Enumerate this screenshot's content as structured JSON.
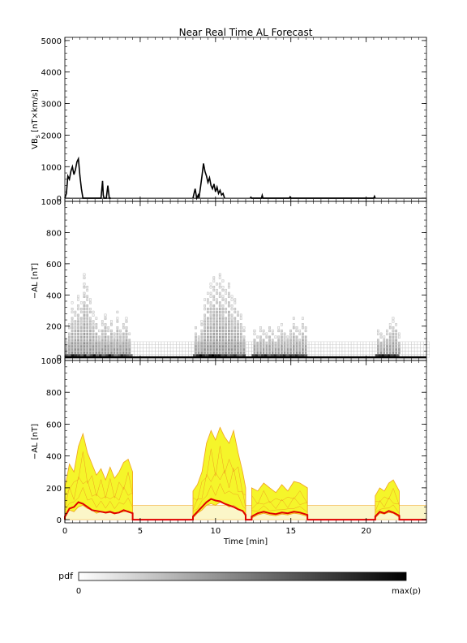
{
  "title": "Near Real Time AL Forecast",
  "colors": {
    "axis": "#000000",
    "band_fill": "#f5f52a",
    "band_edge": "#f0a020",
    "median": "#e00000",
    "pale_band": "#fbf6c8",
    "bar_fill": "#ffffff"
  },
  "chart_data": [
    {
      "type": "line",
      "name": "vbs-panel",
      "ylabel": "VBs [nT×km/s]",
      "ylabel_main": "VB",
      "ylabel_sub": "s",
      "ylabel_rest": " [nT×km/s]",
      "xlim": [
        0,
        24
      ],
      "ylim": [
        -100,
        5100
      ],
      "yticks": [
        0,
        1000,
        2000,
        3000,
        4000,
        5000
      ],
      "yminor": 200,
      "xticks": [
        0,
        5,
        10,
        15,
        20
      ],
      "xminor": 0.5,
      "series": [
        {
          "x": [
            0,
            0.1,
            0.2,
            0.3,
            0.4,
            0.5,
            0.6,
            0.7,
            0.8,
            0.9,
            1.0,
            1.1,
            1.2,
            1.3,
            1.4,
            2.4,
            2.5,
            2.55,
            2.6,
            2.75,
            2.85,
            2.9,
            2.95,
            3.05
          ],
          "y": [
            0,
            150,
            700,
            600,
            850,
            1000,
            750,
            900,
            1150,
            1250,
            700,
            300,
            0,
            0,
            0,
            0,
            550,
            100,
            0,
            0,
            400,
            200,
            0,
            0
          ]
        },
        {
          "x": [
            8.5,
            8.65,
            8.75,
            8.85,
            8.9,
            9.0,
            9.1,
            9.2,
            9.3,
            9.4,
            9.5,
            9.6,
            9.7,
            9.8,
            9.9,
            10.0,
            10.1,
            10.2,
            10.3,
            10.4,
            10.5,
            10.6
          ],
          "y": [
            0,
            300,
            0,
            100,
            0,
            350,
            700,
            1100,
            850,
            700,
            500,
            650,
            400,
            300,
            450,
            200,
            350,
            150,
            250,
            100,
            150,
            0
          ]
        },
        {
          "x": [
            12.3,
            12.35,
            12.4,
            13.05,
            13.1,
            13.15,
            14.9,
            14.95,
            15.0,
            20.5,
            20.55,
            20.6
          ],
          "y": [
            0,
            30,
            0,
            0,
            90,
            0,
            0,
            40,
            0,
            0,
            60,
            0
          ]
        }
      ],
      "baseline": [
        0,
        24
      ]
    },
    {
      "type": "heatmap",
      "name": "pdf-panel",
      "ylabel": "−AL [nT]",
      "xlim": [
        0,
        24
      ],
      "ylim": [
        -20,
        1000
      ],
      "yticks": [
        0,
        200,
        400,
        600,
        800,
        1000
      ],
      "yminor": 40,
      "xticks": [
        0,
        5,
        10,
        15,
        20
      ],
      "xminor": 0.5,
      "bin_height": 20,
      "background_band": [
        0,
        100
      ],
      "active_segments": [
        {
          "start": 0,
          "end": 4.5,
          "dark": [
            0.7,
            0.6,
            0.9,
            0.8,
            0.75,
            0.6,
            0.85,
            0.5,
            0.7,
            0.9,
            0.6,
            0.8,
            0.55,
            0.7,
            0.9,
            0.7,
            0.5,
            0.6,
            0.8,
            0.7,
            0.6,
            0.55
          ]
        },
        {
          "start": 8.5,
          "end": 12.0,
          "dark": [
            0.6,
            0.8,
            0.95,
            0.8,
            0.7,
            0.9,
            1.0,
            0.85,
            0.9,
            0.7,
            0.8,
            0.6,
            0.7,
            0.8,
            0.6,
            0.55,
            0.7
          ]
        },
        {
          "start": 12.4,
          "end": 16.1,
          "dark": [
            0.7,
            0.8,
            0.6,
            0.75,
            0.85,
            0.6,
            0.7,
            0.8,
            0.65,
            0.7,
            0.8,
            0.6,
            0.75,
            0.7,
            0.8,
            0.65,
            0.7,
            0.6
          ]
        },
        {
          "start": 20.6,
          "end": 22.2,
          "dark": [
            0.7,
            0.8,
            0.9,
            0.75,
            0.85,
            0.7,
            0.8,
            0.6
          ]
        }
      ],
      "columns": [
        [
          0.0,
          120
        ],
        [
          0.2,
          230
        ],
        [
          0.4,
          350
        ],
        [
          0.6,
          300
        ],
        [
          0.8,
          420
        ],
        [
          1.0,
          350
        ],
        [
          1.2,
          560
        ],
        [
          1.4,
          480
        ],
        [
          1.6,
          380
        ],
        [
          1.8,
          300
        ],
        [
          2.0,
          260
        ],
        [
          2.2,
          180
        ],
        [
          2.4,
          240
        ],
        [
          2.6,
          300
        ],
        [
          2.8,
          200
        ],
        [
          3.0,
          260
        ],
        [
          3.2,
          180
        ],
        [
          3.4,
          300
        ],
        [
          3.6,
          200
        ],
        [
          3.8,
          230
        ],
        [
          4.0,
          260
        ],
        [
          4.2,
          160
        ],
        [
          8.6,
          200
        ],
        [
          8.8,
          150
        ],
        [
          9.0,
          260
        ],
        [
          9.2,
          380
        ],
        [
          9.4,
          420
        ],
        [
          9.6,
          500
        ],
        [
          9.8,
          540
        ],
        [
          10.0,
          470
        ],
        [
          10.2,
          560
        ],
        [
          10.4,
          500
        ],
        [
          10.6,
          430
        ],
        [
          10.8,
          480
        ],
        [
          11.0,
          400
        ],
        [
          11.2,
          380
        ],
        [
          11.4,
          320
        ],
        [
          11.6,
          280
        ],
        [
          11.8,
          200
        ],
        [
          12.5,
          180
        ],
        [
          12.7,
          140
        ],
        [
          12.9,
          200
        ],
        [
          13.1,
          170
        ],
        [
          13.3,
          150
        ],
        [
          13.5,
          220
        ],
        [
          13.7,
          180
        ],
        [
          13.9,
          140
        ],
        [
          14.1,
          200
        ],
        [
          14.3,
          220
        ],
        [
          14.5,
          170
        ],
        [
          14.7,
          150
        ],
        [
          14.9,
          200
        ],
        [
          15.1,
          250
        ],
        [
          15.3,
          220
        ],
        [
          15.5,
          170
        ],
        [
          15.7,
          260
        ],
        [
          15.9,
          200
        ],
        [
          20.7,
          180
        ],
        [
          20.9,
          160
        ],
        [
          21.1,
          140
        ],
        [
          21.3,
          180
        ],
        [
          21.5,
          240
        ],
        [
          21.7,
          260
        ],
        [
          21.9,
          220
        ],
        [
          22.1,
          150
        ]
      ]
    },
    {
      "type": "area",
      "name": "forecast-panel",
      "ylabel": "−AL [nT]",
      "xlabel": "Time [min]",
      "xlim": [
        0,
        24
      ],
      "ylim": [
        -20,
        1000
      ],
      "yticks": [
        0,
        200,
        400,
        600,
        800,
        1000
      ],
      "yminor": 40,
      "xticks": [
        0,
        5,
        10,
        15,
        20
      ],
      "xminor": 0.5,
      "pale_band": [
        0,
        90
      ],
      "segments": [
        {
          "x": [
            0,
            0.3,
            0.6,
            0.9,
            1.2,
            1.5,
            1.8,
            2.1,
            2.4,
            2.7,
            3.0,
            3.3,
            3.6,
            3.9,
            4.2,
            4.5
          ],
          "upper": [
            200,
            350,
            300,
            460,
            540,
            420,
            350,
            280,
            320,
            250,
            330,
            260,
            300,
            360,
            380,
            300
          ],
          "lower": [
            10,
            60,
            50,
            80,
            90,
            70,
            60,
            40,
            50,
            40,
            45,
            35,
            45,
            50,
            55,
            40
          ],
          "median": [
            20,
            70,
            80,
            110,
            100,
            80,
            60,
            55,
            50,
            45,
            50,
            40,
            45,
            60,
            50,
            40
          ]
        },
        {
          "x": [
            8.5,
            8.8,
            9.1,
            9.4,
            9.7,
            10.0,
            10.3,
            10.6,
            10.9,
            11.2,
            11.5,
            11.8,
            12.0
          ],
          "upper": [
            180,
            220,
            300,
            480,
            560,
            500,
            580,
            520,
            480,
            560,
            420,
            300,
            200
          ],
          "lower": [
            10,
            40,
            60,
            90,
            100,
            90,
            110,
            100,
            80,
            90,
            70,
            50,
            20
          ],
          "median": [
            20,
            50,
            80,
            110,
            130,
            120,
            115,
            100,
            90,
            80,
            65,
            55,
            30
          ]
        },
        {
          "x": [
            12.4,
            12.8,
            13.2,
            13.6,
            14.0,
            14.4,
            14.8,
            15.2,
            15.6,
            16.1
          ],
          "upper": [
            200,
            180,
            230,
            200,
            170,
            220,
            180,
            240,
            230,
            200
          ],
          "lower": [
            10,
            30,
            40,
            30,
            25,
            35,
            30,
            40,
            35,
            20
          ],
          "median": [
            20,
            40,
            50,
            40,
            35,
            45,
            40,
            50,
            45,
            30
          ]
        },
        {
          "x": [
            20.6,
            20.9,
            21.2,
            21.5,
            21.8,
            22.2
          ],
          "upper": [
            150,
            200,
            180,
            230,
            250,
            180
          ],
          "lower": [
            10,
            40,
            35,
            45,
            40,
            15
          ],
          "median": [
            20,
            50,
            40,
            55,
            45,
            25
          ]
        }
      ]
    }
  ],
  "colorbar": {
    "label": "pdf",
    "min_label": "0",
    "max_label": "max(p)"
  }
}
